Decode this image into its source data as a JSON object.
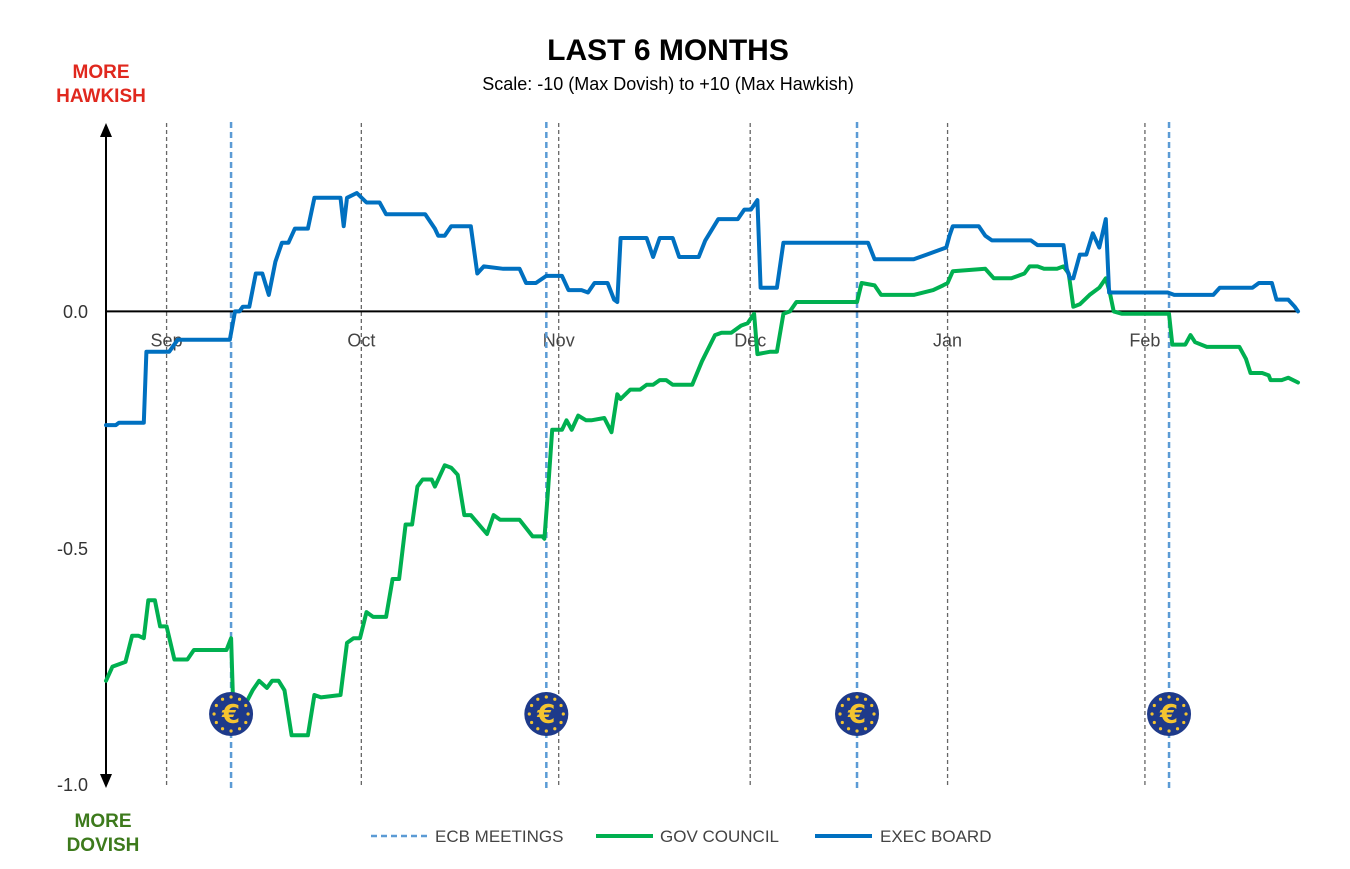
{
  "colors": {
    "ecb": "#5b9bd5",
    "gov": "#00b050",
    "exec": "#0070c0",
    "hawk": "#e0281e",
    "dove": "#3d7a1c",
    "euro_bg": "#1e3a8a",
    "euro_fg": "#f4c430"
  },
  "corner_labels": {
    "hawkish_1": "MORE",
    "hawkish_2": "HAWKISH",
    "dovish_1": "MORE",
    "dovish_2": "DOVISH"
  },
  "chart_data": {
    "type": "line",
    "title": "LAST 6 MONTHS",
    "subtitle": "Scale: -10 (Max Dovish)  to +10 (Max Hawkish)",
    "ylim": [
      -1.0,
      0.4
    ],
    "xlim": [
      0,
      183
    ],
    "y_ticks": [
      {
        "value": 0.0,
        "label": "0.0"
      },
      {
        "value": -0.5,
        "label": "-0.5"
      },
      {
        "value": -1.0,
        "label": "-1.0"
      }
    ],
    "month_ticks": [
      {
        "x": 9.3,
        "label": "Sep"
      },
      {
        "x": 39.2,
        "label": "Oct"
      },
      {
        "x": 69.5,
        "label": "Nov"
      },
      {
        "x": 98.9,
        "label": "Dec"
      },
      {
        "x": 129.2,
        "label": "Jan"
      },
      {
        "x": 159.5,
        "label": "Feb"
      }
    ],
    "meeting_dates": [
      19.2,
      67.6,
      115.3,
      163.2
    ],
    "legend": [
      "ECB MEETINGS",
      "GOV COUNCIL",
      "EXEC BOARD"
    ],
    "series": [
      {
        "name": "GOV COUNCIL",
        "color": "#00b050",
        "points": [
          [
            0,
            -0.78
          ],
          [
            1,
            -0.75
          ],
          [
            2,
            -0.745
          ],
          [
            3,
            -0.74
          ],
          [
            4,
            -0.685
          ],
          [
            5,
            -0.685
          ],
          [
            5.8,
            -0.69
          ],
          [
            6.5,
            -0.61
          ],
          [
            7.5,
            -0.61
          ],
          [
            8.3,
            -0.665
          ],
          [
            9.3,
            -0.665
          ],
          [
            10.5,
            -0.735
          ],
          [
            12.5,
            -0.735
          ],
          [
            13.5,
            -0.715
          ],
          [
            18.5,
            -0.715
          ],
          [
            19.2,
            -0.69
          ],
          [
            19.5,
            -0.82
          ],
          [
            21,
            -0.84
          ],
          [
            22.5,
            -0.8
          ],
          [
            23.5,
            -0.78
          ],
          [
            24.7,
            -0.795
          ],
          [
            25.5,
            -0.78
          ],
          [
            26.5,
            -0.78
          ],
          [
            27.4,
            -0.8
          ],
          [
            28.5,
            -0.895
          ],
          [
            31,
            -0.895
          ],
          [
            32,
            -0.81
          ],
          [
            33,
            -0.815
          ],
          [
            36,
            -0.81
          ],
          [
            37,
            -0.7
          ],
          [
            38,
            -0.69
          ],
          [
            39,
            -0.69
          ],
          [
            40,
            -0.635
          ],
          [
            41,
            -0.645
          ],
          [
            43,
            -0.645
          ],
          [
            44,
            -0.565
          ],
          [
            45,
            -0.565
          ],
          [
            46,
            -0.45
          ],
          [
            47,
            -0.45
          ],
          [
            47.8,
            -0.37
          ],
          [
            48.6,
            -0.355
          ],
          [
            50,
            -0.355
          ],
          [
            50.5,
            -0.37
          ],
          [
            52,
            -0.325
          ],
          [
            53,
            -0.33
          ],
          [
            54,
            -0.345
          ],
          [
            55,
            -0.43
          ],
          [
            56,
            -0.43
          ],
          [
            58.5,
            -0.47
          ],
          [
            59.5,
            -0.43
          ],
          [
            60.5,
            -0.44
          ],
          [
            63.5,
            -0.44
          ],
          [
            65.5,
            -0.475
          ],
          [
            67,
            -0.475
          ],
          [
            67.3,
            -0.48
          ],
          [
            67.8,
            -0.39
          ],
          [
            68.5,
            -0.25
          ],
          [
            70,
            -0.25
          ],
          [
            70.7,
            -0.23
          ],
          [
            71.5,
            -0.25
          ],
          [
            72.5,
            -0.22
          ],
          [
            73.7,
            -0.23
          ],
          [
            74.5,
            -0.23
          ],
          [
            76.5,
            -0.225
          ],
          [
            77.6,
            -0.255
          ],
          [
            78.5,
            -0.175
          ],
          [
            79,
            -0.185
          ],
          [
            80.5,
            -0.165
          ],
          [
            82,
            -0.165
          ],
          [
            83,
            -0.155
          ],
          [
            84,
            -0.155
          ],
          [
            85,
            -0.145
          ],
          [
            86,
            -0.145
          ],
          [
            87,
            -0.155
          ],
          [
            89,
            -0.155
          ],
          [
            90,
            -0.155
          ],
          [
            91.5,
            -0.105
          ],
          [
            93.5,
            -0.05
          ],
          [
            94.5,
            -0.045
          ],
          [
            96,
            -0.045
          ],
          [
            97.5,
            -0.03
          ],
          [
            98.5,
            -0.025
          ],
          [
            99.5,
            -0.005
          ],
          [
            100,
            -0.09
          ],
          [
            102,
            -0.085
          ],
          [
            103,
            -0.085
          ],
          [
            104,
            -0.005
          ],
          [
            105,
            0.0
          ],
          [
            106,
            0.02
          ],
          [
            114.5,
            0.02
          ],
          [
            115.3,
            0.02
          ],
          [
            116,
            0.06
          ],
          [
            118,
            0.055
          ],
          [
            119,
            0.035
          ],
          [
            121,
            0.035
          ],
          [
            124,
            0.035
          ],
          [
            127,
            0.045
          ],
          [
            128.5,
            0.055
          ],
          [
            129.2,
            0.06
          ],
          [
            130,
            0.085
          ],
          [
            135,
            0.09
          ],
          [
            136.3,
            0.07
          ],
          [
            139,
            0.07
          ],
          [
            141,
            0.08
          ],
          [
            141.8,
            0.095
          ],
          [
            143,
            0.095
          ],
          [
            144,
            0.09
          ],
          [
            146,
            0.09
          ],
          [
            147,
            0.095
          ],
          [
            147.8,
            0.08
          ],
          [
            148.5,
            0.01
          ],
          [
            149.5,
            0.015
          ],
          [
            151,
            0.035
          ],
          [
            152.5,
            0.05
          ],
          [
            153.5,
            0.07
          ],
          [
            154.1,
            0.04
          ],
          [
            154.7,
            0.0
          ],
          [
            156,
            -0.005
          ],
          [
            157.5,
            -0.005
          ],
          [
            163.2,
            -0.005
          ],
          [
            163.7,
            -0.07
          ],
          [
            165.7,
            -0.07
          ],
          [
            166.5,
            -0.05
          ],
          [
            167.2,
            -0.065
          ],
          [
            169,
            -0.075
          ],
          [
            174,
            -0.075
          ],
          [
            175,
            -0.1
          ],
          [
            175.7,
            -0.13
          ],
          [
            177.5,
            -0.13
          ],
          [
            178.5,
            -0.135
          ],
          [
            178.8,
            -0.145
          ],
          [
            180.5,
            -0.145
          ],
          [
            181.5,
            -0.14
          ],
          [
            183,
            -0.15
          ]
        ]
      },
      {
        "name": "EXEC BOARD",
        "color": "#0070c0",
        "points": [
          [
            0,
            -0.24
          ],
          [
            1.5,
            -0.24
          ],
          [
            2,
            -0.235
          ],
          [
            5.8,
            -0.235
          ],
          [
            6.2,
            -0.085
          ],
          [
            9.7,
            -0.085
          ],
          [
            11,
            -0.06
          ],
          [
            19,
            -0.06
          ],
          [
            19.8,
            0.0
          ],
          [
            20.5,
            0.0
          ],
          [
            21,
            0.01
          ],
          [
            22,
            0.01
          ],
          [
            23,
            0.08
          ],
          [
            24,
            0.08
          ],
          [
            25,
            0.035
          ],
          [
            26,
            0.105
          ],
          [
            27,
            0.145
          ],
          [
            28,
            0.145
          ],
          [
            29,
            0.175
          ],
          [
            31,
            0.175
          ],
          [
            32,
            0.24
          ],
          [
            36,
            0.24
          ],
          [
            36.5,
            0.18
          ],
          [
            37,
            0.24
          ],
          [
            38.5,
            0.25
          ],
          [
            40,
            0.23
          ],
          [
            42,
            0.23
          ],
          [
            43,
            0.205
          ],
          [
            49,
            0.205
          ],
          [
            50.5,
            0.175
          ],
          [
            51,
            0.16
          ],
          [
            52,
            0.16
          ],
          [
            53,
            0.18
          ],
          [
            56,
            0.18
          ],
          [
            57,
            0.08
          ],
          [
            58,
            0.095
          ],
          [
            61,
            0.09
          ],
          [
            63.5,
            0.09
          ],
          [
            64.5,
            0.06
          ],
          [
            66,
            0.06
          ],
          [
            67.6,
            0.075
          ],
          [
            70,
            0.075
          ],
          [
            71,
            0.045
          ],
          [
            72,
            0.045
          ],
          [
            73,
            0.045
          ],
          [
            74,
            0.04
          ],
          [
            75,
            0.06
          ],
          [
            77,
            0.06
          ],
          [
            78,
            0.025
          ],
          [
            78.5,
            0.02
          ],
          [
            79,
            0.155
          ],
          [
            81,
            0.155
          ],
          [
            83,
            0.155
          ],
          [
            84,
            0.115
          ],
          [
            85,
            0.155
          ],
          [
            86,
            0.155
          ],
          [
            87,
            0.155
          ],
          [
            88,
            0.115
          ],
          [
            91,
            0.115
          ],
          [
            92,
            0.15
          ],
          [
            94,
            0.195
          ],
          [
            96,
            0.195
          ],
          [
            97,
            0.195
          ],
          [
            98,
            0.215
          ],
          [
            99,
            0.215
          ],
          [
            100,
            0.235
          ],
          [
            100.5,
            0.05
          ],
          [
            103,
            0.05
          ],
          [
            104,
            0.145
          ],
          [
            110,
            0.145
          ],
          [
            115.3,
            0.145
          ],
          [
            116,
            0.145
          ],
          [
            117,
            0.145
          ],
          [
            118,
            0.11
          ],
          [
            121,
            0.11
          ],
          [
            124,
            0.11
          ],
          [
            126,
            0.12
          ],
          [
            128,
            0.13
          ],
          [
            129,
            0.135
          ],
          [
            129.5,
            0.16
          ],
          [
            130,
            0.18
          ],
          [
            134,
            0.18
          ],
          [
            135,
            0.16
          ],
          [
            136,
            0.15
          ],
          [
            139,
            0.15
          ],
          [
            142,
            0.15
          ],
          [
            143,
            0.14
          ],
          [
            147,
            0.14
          ],
          [
            147.5,
            0.09
          ],
          [
            148,
            0.07
          ],
          [
            148.5,
            0.07
          ],
          [
            149.5,
            0.12
          ],
          [
            150.5,
            0.12
          ],
          [
            151.5,
            0.165
          ],
          [
            152.5,
            0.135
          ],
          [
            153.5,
            0.195
          ],
          [
            154,
            0.04
          ],
          [
            158,
            0.04
          ],
          [
            163,
            0.04
          ],
          [
            164,
            0.035
          ],
          [
            170,
            0.035
          ],
          [
            171,
            0.05
          ],
          [
            176,
            0.05
          ],
          [
            177,
            0.06
          ],
          [
            179,
            0.06
          ],
          [
            179.7,
            0.025
          ],
          [
            181.5,
            0.025
          ],
          [
            182.5,
            0.01
          ],
          [
            183,
            0.0
          ]
        ]
      }
    ]
  }
}
